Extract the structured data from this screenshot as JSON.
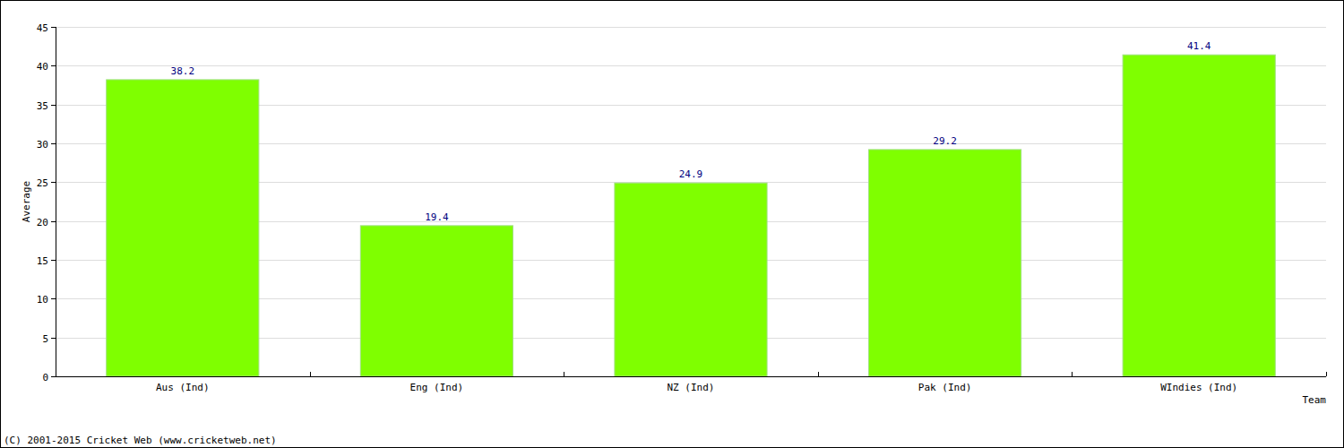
{
  "chart_data": {
    "type": "bar",
    "categories": [
      "Aus (Ind)",
      "Eng (Ind)",
      "NZ (Ind)",
      "Pak (Ind)",
      "WIndies (Ind)"
    ],
    "values": [
      38.2,
      19.4,
      24.9,
      29.2,
      41.4
    ],
    "color": "#7fff00",
    "x_label": "Team",
    "y_label": "Average",
    "annotations": [
      "(C) 2001-2015 Cricket Web (www.cricketweb.net)"
    ],
    "ylim": [
      0,
      45
    ],
    "yticks": [
      0,
      5,
      10,
      15,
      20,
      25,
      30,
      35,
      40,
      45
    ],
    "grid": true,
    "data_labels": true
  }
}
